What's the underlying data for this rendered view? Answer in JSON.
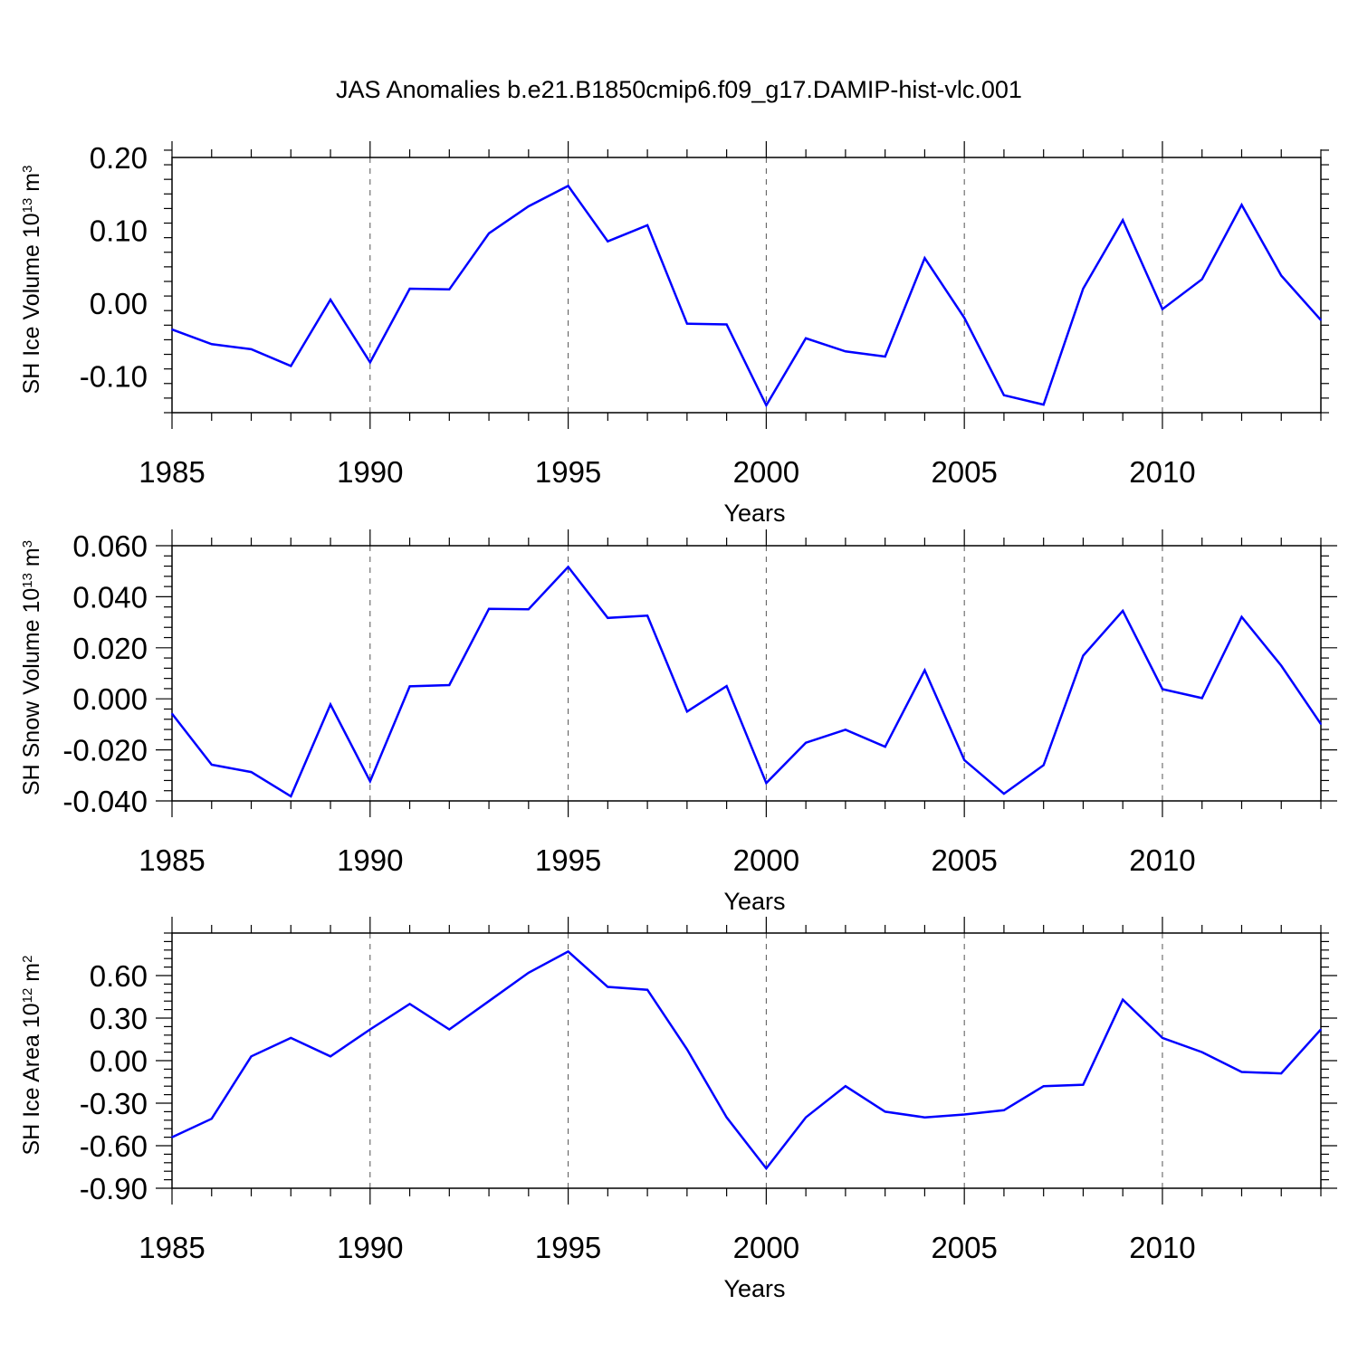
{
  "title": "JAS Anomalies b.e21.B1850cmip6.f09_g17.DAMIP-hist-vlc.001",
  "chart_data": [
    {
      "type": "line",
      "title": "",
      "xlabel": "Years",
      "ylabel": "SH Ice Volume 10",
      "ylabel_exponent": "13",
      "ylabel_unit": " m",
      "ylabel_unit_exponent": "3",
      "xlim": [
        1985,
        2014
      ],
      "ylim": [
        -0.15,
        0.2
      ],
      "xticks": [
        "1985",
        "1990",
        "1995",
        "2000",
        "2005",
        "2010"
      ],
      "yticks": [
        "0.20",
        "0.10",
        "0.00",
        "-0.10"
      ],
      "ytick_values": [
        0.2,
        0.1,
        0.0,
        -0.1
      ],
      "grid": "vertical dashed at major x ticks",
      "line_color": "#0000ff",
      "x": [
        1985,
        1986,
        1987,
        1988,
        1989,
        1990,
        1991,
        1992,
        1993,
        1994,
        1995,
        1996,
        1997,
        1998,
        1999,
        2000,
        2001,
        2002,
        2003,
        2004,
        2005,
        2006,
        2007,
        2008,
        2009,
        2010,
        2011,
        2012,
        2013,
        2014
      ],
      "y": [
        -0.036,
        -0.056,
        -0.063,
        -0.086,
        0.005,
        -0.081,
        0.02,
        0.019,
        0.096,
        0.133,
        0.161,
        0.085,
        0.107,
        -0.028,
        -0.029,
        -0.14,
        -0.048,
        -0.066,
        -0.073,
        0.062,
        -0.02,
        -0.126,
        -0.139,
        0.02,
        0.114,
        -0.008,
        0.033,
        0.135,
        0.038,
        -0.023
      ]
    },
    {
      "type": "line",
      "title": "",
      "xlabel": "Years",
      "ylabel": "SH Snow Volume 10",
      "ylabel_exponent": "13",
      "ylabel_unit": " m",
      "ylabel_unit_exponent": "3",
      "xlim": [
        1985,
        2014
      ],
      "ylim": [
        -0.04,
        0.06
      ],
      "xticks": [
        "1985",
        "1990",
        "1995",
        "2000",
        "2005",
        "2010"
      ],
      "yticks": [
        "0.060",
        "0.040",
        "0.020",
        "0.000",
        "-0.020",
        "-0.040"
      ],
      "ytick_values": [
        0.06,
        0.04,
        0.02,
        0.0,
        -0.02,
        -0.04
      ],
      "grid": "vertical dashed at major x ticks",
      "line_color": "#0000ff",
      "x": [
        1985,
        1986,
        1987,
        1988,
        1989,
        1990,
        1991,
        1992,
        1993,
        1994,
        1995,
        1996,
        1997,
        1998,
        1999,
        2000,
        2001,
        2002,
        2003,
        2004,
        2005,
        2006,
        2007,
        2008,
        2009,
        2010,
        2011,
        2012,
        2013,
        2014
      ],
      "y": [
        -0.0058,
        -0.0258,
        -0.0287,
        -0.0382,
        -0.0022,
        -0.0323,
        0.0049,
        0.0054,
        0.0353,
        0.0351,
        0.0517,
        0.0317,
        0.0326,
        -0.005,
        0.005,
        -0.033,
        -0.0172,
        -0.0121,
        -0.0188,
        0.0112,
        -0.024,
        -0.0372,
        -0.026,
        0.0169,
        0.0345,
        0.0038,
        0.0003,
        0.0321,
        0.013,
        -0.0099
      ]
    },
    {
      "type": "line",
      "title": "",
      "xlabel": "Years",
      "ylabel": "SH Ice Area 10",
      "ylabel_exponent": "12",
      "ylabel_unit": " m",
      "ylabel_unit_exponent": "2",
      "xlim": [
        1985,
        2014
      ],
      "ylim": [
        -0.9,
        0.9
      ],
      "xticks": [
        "1985",
        "1990",
        "1995",
        "2000",
        "2005",
        "2010"
      ],
      "yticks": [
        "0.60",
        "0.30",
        "0.00",
        "-0.30",
        "-0.60",
        "-0.90"
      ],
      "ytick_values": [
        0.6,
        0.3,
        0.0,
        -0.3,
        -0.6,
        -0.9
      ],
      "grid": "vertical dashed at major x ticks",
      "line_color": "#0000ff",
      "x": [
        1985,
        1986,
        1987,
        1988,
        1989,
        1990,
        1991,
        1992,
        1993,
        1994,
        1995,
        1996,
        1997,
        1998,
        1999,
        2000,
        2001,
        2002,
        2003,
        2004,
        2005,
        2006,
        2007,
        2008,
        2009,
        2010,
        2011,
        2012,
        2013,
        2014
      ],
      "y": [
        -0.54,
        -0.41,
        0.03,
        0.16,
        0.03,
        0.22,
        0.4,
        0.22,
        0.42,
        0.62,
        0.77,
        0.52,
        0.5,
        0.08,
        -0.4,
        -0.76,
        -0.4,
        -0.18,
        -0.36,
        -0.4,
        -0.38,
        -0.35,
        -0.18,
        -0.17,
        0.43,
        0.16,
        0.06,
        -0.08,
        -0.09,
        0.22
      ]
    }
  ]
}
